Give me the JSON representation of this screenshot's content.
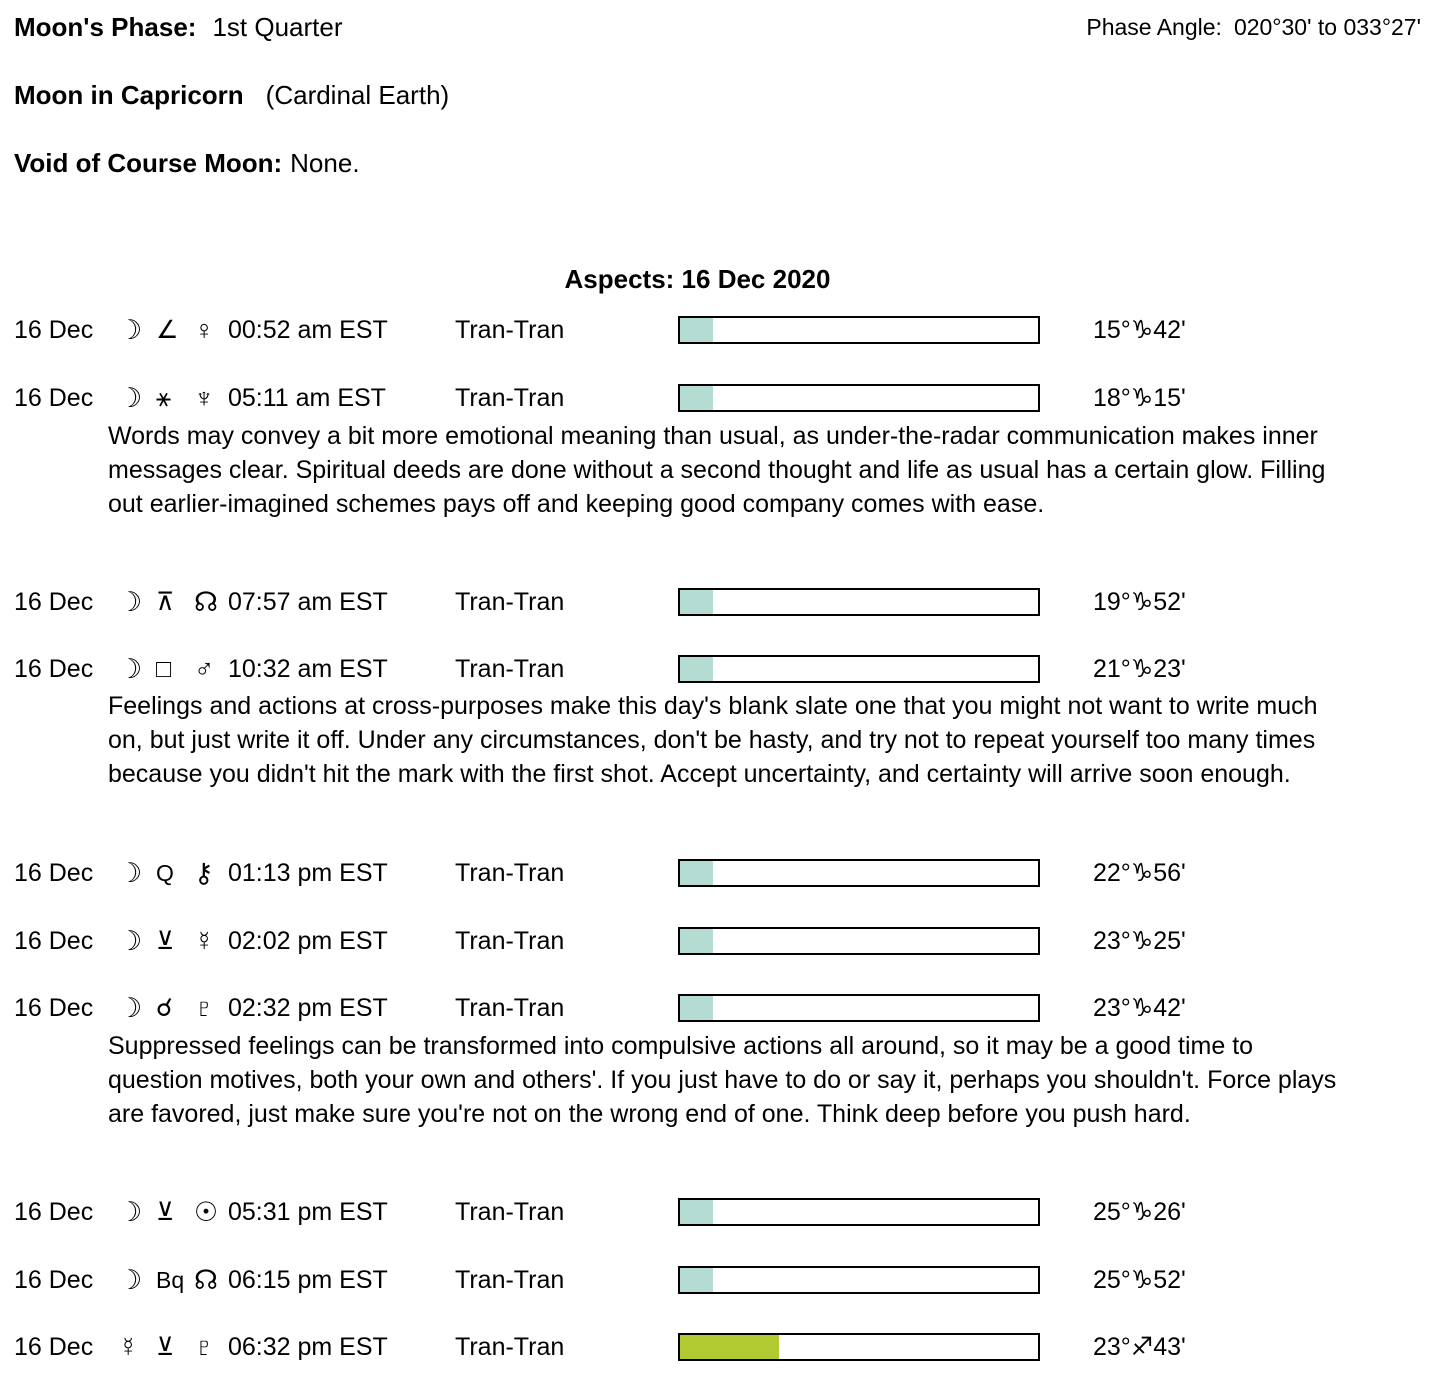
{
  "header": {
    "moon_phase_label": "Moon's Phase:",
    "moon_phase_value": "1st Quarter",
    "phase_angle_label": "Phase Angle:",
    "phase_angle_value": "020°30' to 033°27'",
    "moon_sign_label": "Moon in Capricorn",
    "moon_sign_value": "(Cardinal Earth)",
    "voc_label": "Void of Course Moon:",
    "voc_value": "None."
  },
  "aspects": {
    "title": "Aspects: 16 Dec 2020",
    "colors": {
      "moon_bar_fill": "#b5dcd2",
      "other_bar_fill": "#b2ca32",
      "bar_border": "#000000"
    },
    "rows": [
      {
        "date": "16 Dec",
        "body1": "☽",
        "aspect": "∠",
        "body2": "♀",
        "time": "00:52 am EST",
        "type": "Tran-Tran",
        "fill": "9.2%",
        "fill_color": "#b5dcd2",
        "degree": "15°♑42'"
      },
      {
        "date": "16 Dec",
        "body1": "☽",
        "aspect": "⚹",
        "body2": "♆",
        "time": "05:11 am EST",
        "type": "Tran-Tran",
        "fill": "9.2%",
        "fill_color": "#b5dcd2",
        "degree": "18°♑15'",
        "note": "Words may convey a bit more emotional meaning than usual, as under-the-radar communication makes inner messages clear. Spiritual deeds are done without a second thought and life as usual has a certain glow. Filling out earlier-imagined schemes pays off and keeping good company comes with ease."
      },
      {
        "date": "16 Dec",
        "body1": "☽",
        "aspect": "⊼",
        "body2": "☊",
        "time": "07:57 am EST",
        "type": "Tran-Tran",
        "fill": "9.2%",
        "fill_color": "#b5dcd2",
        "degree": "19°♑52'"
      },
      {
        "date": "16 Dec",
        "body1": "☽",
        "aspect": "□",
        "body2": "♂",
        "time": "10:32 am EST",
        "type": "Tran-Tran",
        "fill": "9.2%",
        "fill_color": "#b5dcd2",
        "degree": "21°♑23'",
        "note": "Feelings and actions at cross-purposes make this day's blank slate one that you might not want to write much on, but just write it off. Under any circumstances, don't be hasty, and try not to repeat yourself too many times because you didn't hit the mark with the first shot. Accept uncertainty, and certainty will arrive soon enough."
      },
      {
        "date": "16 Dec",
        "body1": "☽",
        "aspect": "Q",
        "body2": "⚷",
        "time": "01:13 pm EST",
        "type": "Tran-Tran",
        "fill": "9.2%",
        "fill_color": "#b5dcd2",
        "degree": "22°♑56'"
      },
      {
        "date": "16 Dec",
        "body1": "☽",
        "aspect": "⊻",
        "body2": "☿",
        "time": "02:02 pm EST",
        "type": "Tran-Tran",
        "fill": "9.2%",
        "fill_color": "#b5dcd2",
        "degree": "23°♑25'"
      },
      {
        "date": "16 Dec",
        "body1": "☽",
        "aspect": "☌",
        "body2": "♇",
        "time": "02:32 pm EST",
        "type": "Tran-Tran",
        "fill": "9.2%",
        "fill_color": "#b5dcd2",
        "degree": "23°♑42'",
        "note": "Suppressed feelings can be transformed into compulsive actions all around, so it may be a good time to question motives, both your own and others'. If you just have to do or say it, perhaps you shouldn't. Force plays are favored, just make sure you're not on the wrong end of one. Think deep before you push hard."
      },
      {
        "date": "16 Dec",
        "body1": "☽",
        "aspect": "⊻",
        "body2": "☉",
        "time": "05:31 pm EST",
        "type": "Tran-Tran",
        "fill": "9.2%",
        "fill_color": "#b5dcd2",
        "degree": "25°♑26'"
      },
      {
        "date": "16 Dec",
        "body1": "☽",
        "aspect": "Bq",
        "body2": "☊",
        "time": "06:15 pm EST",
        "type": "Tran-Tran",
        "fill": "9.2%",
        "fill_color": "#b5dcd2",
        "degree": "25°♑52'"
      },
      {
        "date": "16 Dec",
        "body1": "☿",
        "aspect": "⊻",
        "body2": "♇",
        "time": "06:32 pm EST",
        "type": "Tran-Tran",
        "fill": "27.6%",
        "fill_color": "#b2ca32",
        "degree": "23°♐43'"
      }
    ]
  }
}
